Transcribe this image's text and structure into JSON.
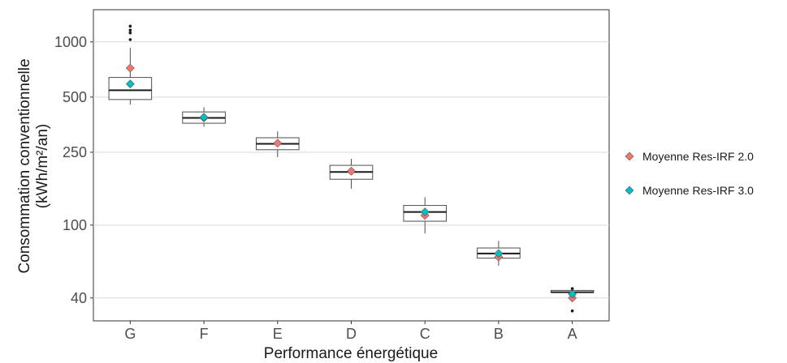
{
  "chart_data": {
    "type": "box",
    "title": "",
    "xlabel": "Performance énergétique",
    "ylabel_lines": [
      "Consommation  conventionnelle",
      "(kWh/m²/an)"
    ],
    "y_scale": "log",
    "ylim": [
      30,
      1500
    ],
    "yticks": [
      40,
      100,
      250,
      500,
      1000
    ],
    "grid": true,
    "legend_position": "right",
    "categories": [
      "G",
      "F",
      "E",
      "D",
      "C",
      "B",
      "A"
    ],
    "boxes": [
      {
        "category": "G",
        "whisker_low": 455,
        "q1": 485,
        "median": 545,
        "q3": 640,
        "whisker_high": 930,
        "outliers": [
          1030,
          1120,
          1160,
          1220
        ]
      },
      {
        "category": "F",
        "whisker_low": 345,
        "q1": 360,
        "median": 385,
        "q3": 415,
        "whisker_high": 440,
        "outliers": []
      },
      {
        "category": "E",
        "whisker_low": 235,
        "q1": 258,
        "median": 278,
        "q3": 300,
        "whisker_high": 325,
        "outliers": []
      },
      {
        "category": "D",
        "whisker_low": 158,
        "q1": 178,
        "median": 195,
        "q3": 212,
        "whisker_high": 230,
        "outliers": []
      },
      {
        "category": "C",
        "whisker_low": 90,
        "q1": 105,
        "median": 118,
        "q3": 128,
        "whisker_high": 142,
        "outliers": []
      },
      {
        "category": "B",
        "whisker_low": 60,
        "q1": 66,
        "median": 70,
        "q3": 75,
        "whisker_high": 82,
        "outliers": []
      },
      {
        "category": "A",
        "whisker_low": 43,
        "q1": 43,
        "median": 43,
        "q3": 44,
        "whisker_high": 44,
        "outliers": [
          45,
          34
        ]
      }
    ],
    "series": [
      {
        "name": "Moyenne Res-IRF 2.0",
        "color": "#F8766D",
        "marker": "diamond",
        "values": [
          720,
          385,
          280,
          197,
          113,
          67,
          40
        ]
      },
      {
        "name": "Moyenne Res-IRF 3.0",
        "color": "#00BFC4",
        "marker": "diamond",
        "values": [
          590,
          388,
          null,
          null,
          118,
          70,
          42
        ]
      }
    ]
  }
}
